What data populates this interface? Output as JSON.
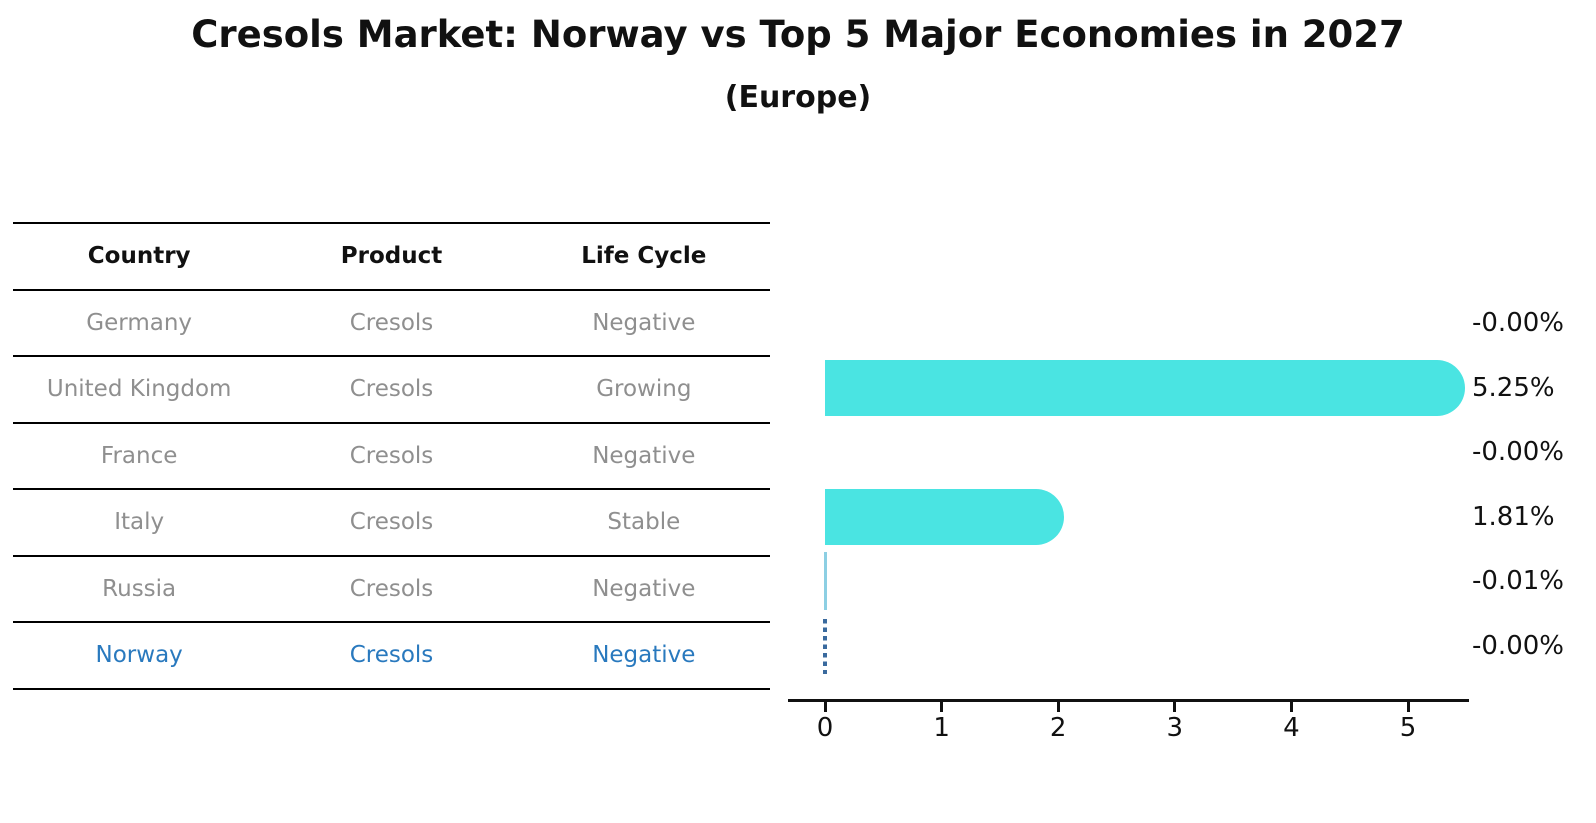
{
  "title": "Cresols Market: Norway vs Top 5 Major Economies in 2027",
  "subtitle": "(Europe)",
  "table": {
    "headers": [
      "Country",
      "Product",
      "Life Cycle"
    ],
    "rows": [
      {
        "country": "Germany",
        "product": "Cresols",
        "life_cycle": "Negative",
        "highlighted": false
      },
      {
        "country": "United Kingdom",
        "product": "Cresols",
        "life_cycle": "Growing",
        "highlighted": false
      },
      {
        "country": "France",
        "product": "Cresols",
        "life_cycle": "Negative",
        "highlighted": false
      },
      {
        "country": "Italy",
        "product": "Cresols",
        "life_cycle": "Stable",
        "highlighted": false
      },
      {
        "country": "Russia",
        "product": "Cresols",
        "life_cycle": "Negative",
        "highlighted": false
      },
      {
        "country": "Norway",
        "product": "Cresols",
        "life_cycle": "Negative",
        "highlighted": true
      }
    ]
  },
  "chart_data": {
    "type": "bar",
    "orientation": "horizontal",
    "title": "Cresols Market: Norway vs Top 5 Major Economies in 2027",
    "subtitle": "(Europe)",
    "xlabel": "",
    "ylabel": "",
    "xlim": [
      0,
      5.5
    ],
    "x_ticks": [
      0,
      1,
      2,
      3,
      4,
      5
    ],
    "grid": false,
    "legend": "none",
    "categories": [
      "Germany",
      "United Kingdom",
      "France",
      "Italy",
      "Russia",
      "Norway"
    ],
    "values": [
      0,
      5.25,
      0,
      1.81,
      -0.01,
      0
    ],
    "rows": [
      {
        "category": "Germany",
        "value": 0,
        "label": "-0.00%",
        "bar_style": "none"
      },
      {
        "category": "United Kingdom",
        "value": 5.25,
        "label": "5.25%",
        "bar_style": "bar"
      },
      {
        "category": "France",
        "value": 0,
        "label": "-0.00%",
        "bar_style": "none"
      },
      {
        "category": "Italy",
        "value": 1.81,
        "label": "1.81%",
        "bar_style": "bar"
      },
      {
        "category": "Russia",
        "value": -0.01,
        "label": "-0.01%",
        "bar_style": "sliver"
      },
      {
        "category": "Norway",
        "value": 0,
        "label": "-0.00%",
        "bar_style": "dashed"
      }
    ]
  },
  "colors": {
    "bar": "#4AE4E2",
    "russia_sliver": "#8CCFE3",
    "norway_dash": "#3A6A9E",
    "highlight_text": "#2979BE",
    "table_text": "#8F8F8F",
    "ink": "#111111",
    "background": "#FFFFFF"
  }
}
